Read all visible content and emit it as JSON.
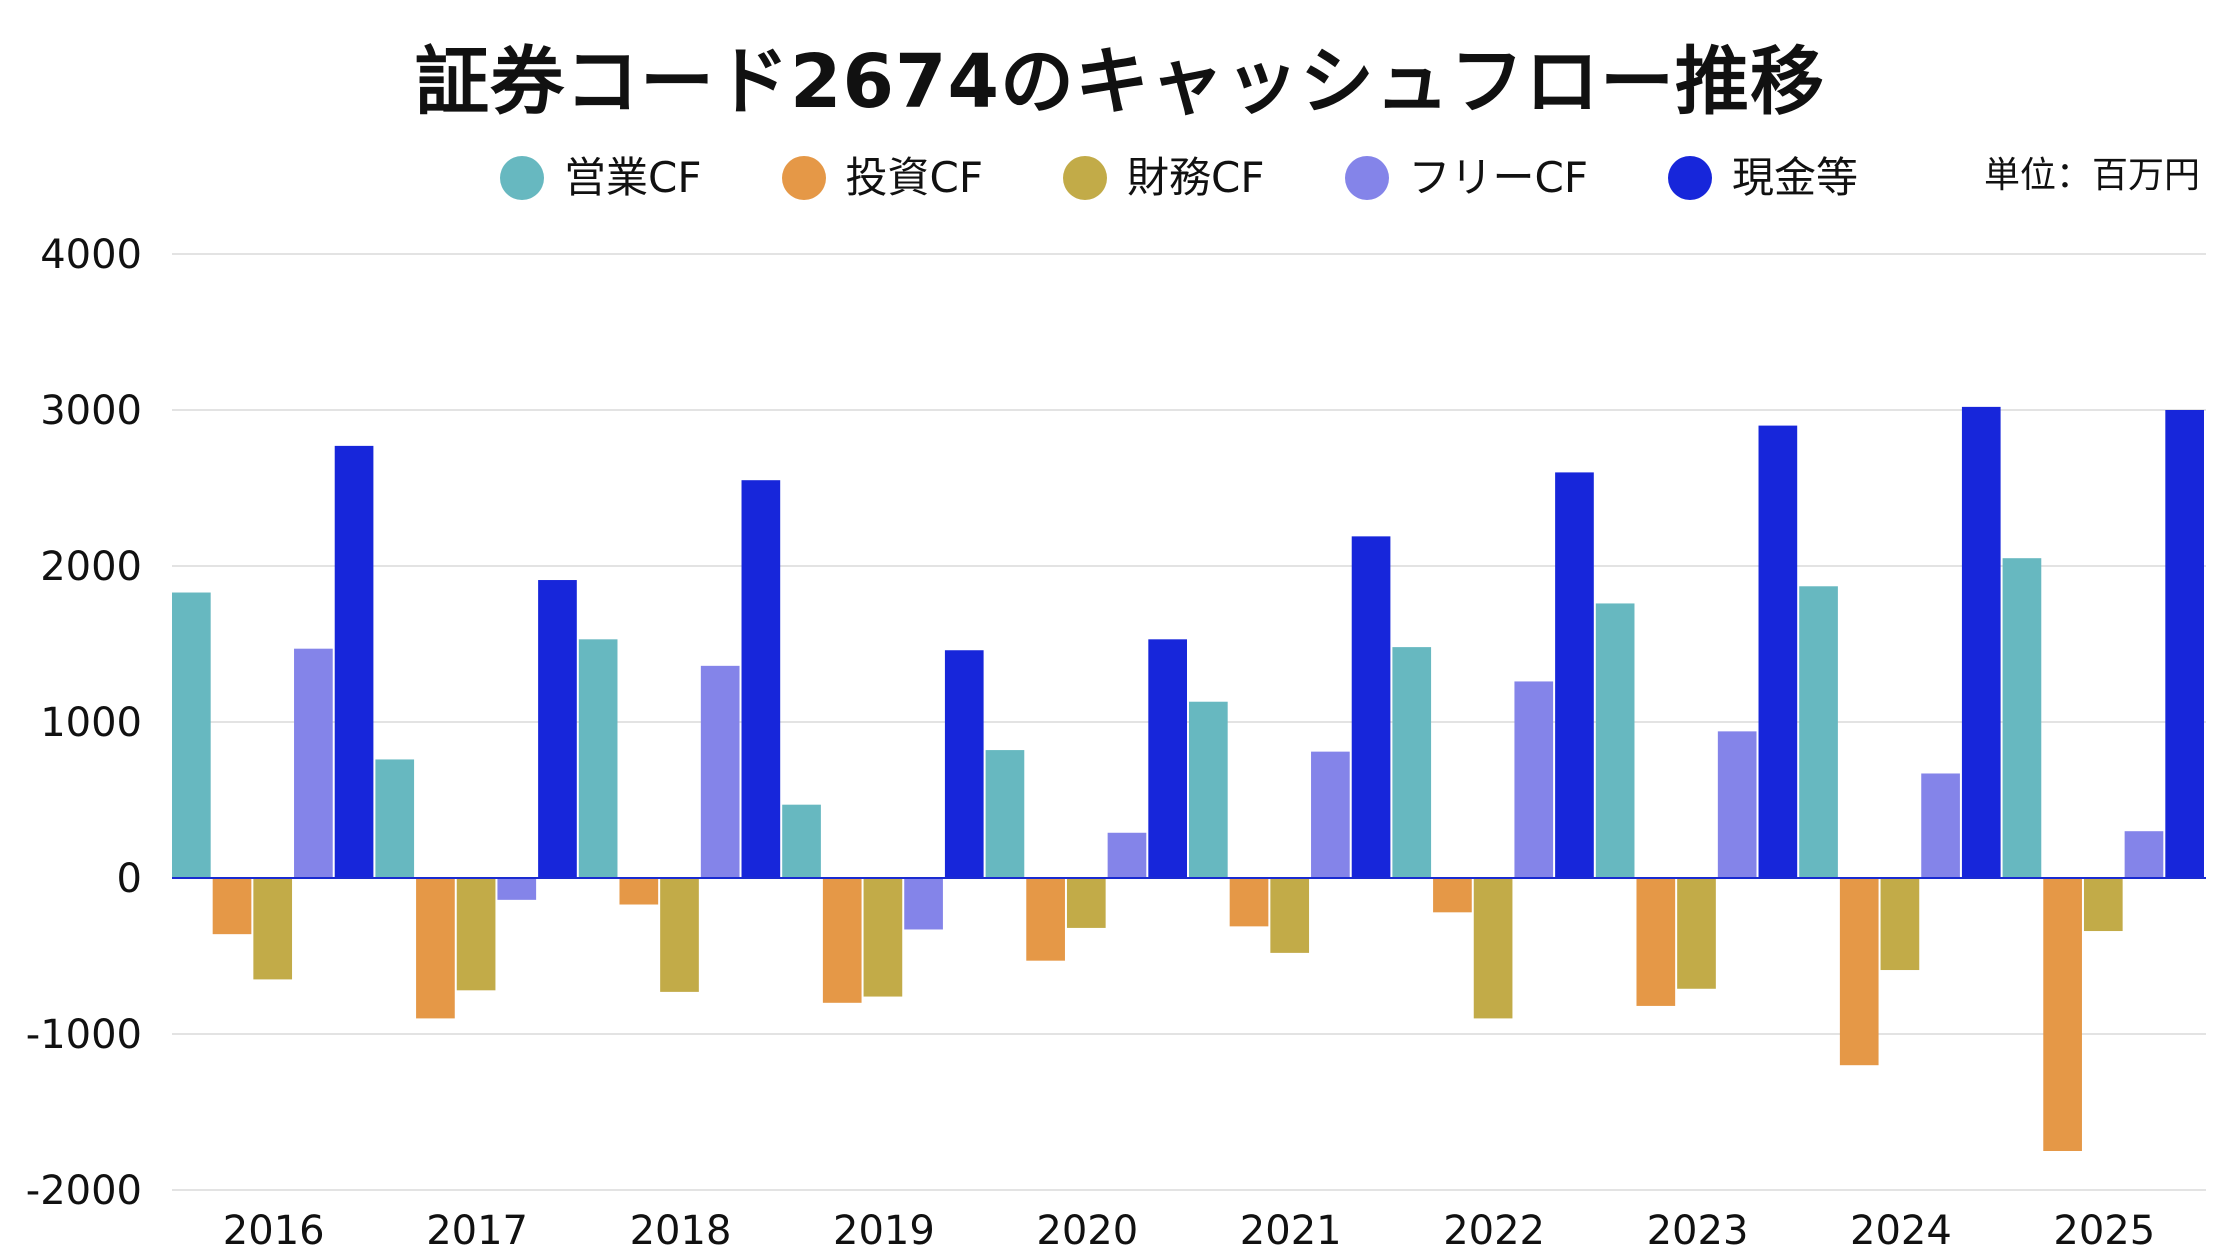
{
  "chart_data": {
    "type": "bar",
    "title": "証券コード2674のキャッシュフロー推移",
    "unit_label": "単位：百万円",
    "categories": [
      "2016",
      "2017",
      "2018",
      "2019",
      "2020",
      "2021",
      "2022",
      "2023",
      "2024",
      "2025"
    ],
    "ylim": [
      -2000,
      4000
    ],
    "yticks": [
      4000,
      3000,
      2000,
      1000,
      0,
      -1000,
      -2000
    ],
    "grid": true,
    "legend_position": "top",
    "series": [
      {
        "name": "営業CF",
        "color": "#67b8c0",
        "values": [
          1830,
          760,
          1530,
          470,
          820,
          1130,
          1480,
          1760,
          1870,
          2050
        ]
      },
      {
        "name": "投資CF",
        "color": "#e59847",
        "values": [
          -360,
          -900,
          -170,
          -800,
          -530,
          -310,
          -220,
          -820,
          -1200,
          -1750
        ]
      },
      {
        "name": "財務CF",
        "color": "#c2ab48",
        "values": [
          -650,
          -720,
          -730,
          -760,
          -320,
          -480,
          -900,
          -710,
          -590,
          -340
        ]
      },
      {
        "name": "フリーCF",
        "color": "#8484e9",
        "values": [
          1470,
          -140,
          1360,
          -330,
          290,
          810,
          1260,
          940,
          670,
          300
        ]
      },
      {
        "name": "現金等",
        "color": "#1726da",
        "values": [
          2770,
          1910,
          2550,
          1460,
          1530,
          2190,
          2600,
          2900,
          3020,
          3000
        ]
      }
    ]
  }
}
